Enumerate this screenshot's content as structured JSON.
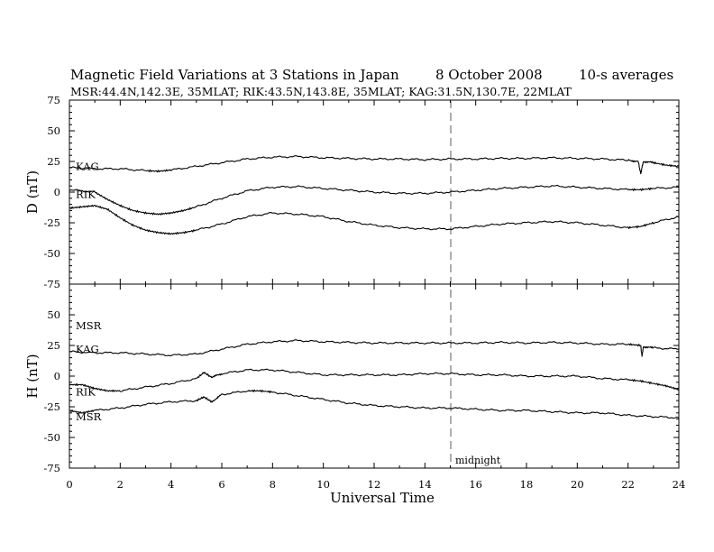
{
  "chart_data": {
    "type": "line",
    "title": "Magnetic Field Variations at 3 Stations in Japan",
    "date": "8   October 2008",
    "averaging": "10-s averages",
    "subtitle": "MSR:44.4N,142.3E, 35MLAT;   RIK:43.5N,143.8E, 35MLAT;   KAG:31.5N,130.7E, 22MLAT",
    "xlabel": "Universal Time",
    "xlim": [
      0,
      24
    ],
    "xticks": [
      "0",
      "2",
      "4",
      "6",
      "8",
      "10",
      "12",
      "14",
      "16",
      "18",
      "20",
      "22",
      "24"
    ],
    "grid": false,
    "annotations": [
      {
        "text": "midnight",
        "x": 15,
        "style": "dashed vertical line"
      }
    ],
    "panels": [
      {
        "ylabel": "D (nT)",
        "ylim": [
          -75,
          75
        ],
        "yticks": [
          "75",
          "50",
          "25",
          "0",
          "-25",
          "-50",
          "-75"
        ],
        "station_labels": [
          {
            "text": "KAG",
            "x": 0.25,
            "y": 21
          },
          {
            "text": "RIK",
            "x": 0.25,
            "y": -2
          }
        ],
        "series": [
          {
            "name": "KAG",
            "x": [
              0,
              1,
              2,
              3,
              3.5,
              4,
              5,
              6,
              7,
              8,
              9,
              10,
              11,
              12,
              13,
              14,
              15,
              16,
              17,
              18,
              19,
              20,
              21,
              22,
              22.4,
              22.5,
              22.6,
              23,
              23.5,
              24
            ],
            "values": [
              20,
              19,
              19,
              17.5,
              17,
              18,
              21,
              24,
              27,
              28.5,
              29,
              28,
              27.5,
              27,
              27,
              26.5,
              27,
              27,
              27.5,
              27.5,
              28,
              27.5,
              27,
              26,
              25,
              15,
              25,
              24,
              22,
              21
            ]
          },
          {
            "name": "RIK",
            "x": [
              0,
              1,
              1.5,
              2,
              2.5,
              3,
              3.5,
              4,
              4.5,
              5,
              6,
              7,
              8,
              9,
              10,
              11,
              12,
              13,
              14,
              15,
              16,
              17,
              18,
              19,
              20,
              21,
              22,
              22.5,
              23,
              24
            ],
            "values": [
              2,
              0,
              -6,
              -11,
              -15,
              -17,
              -18,
              -17,
              -15,
              -12,
              -5,
              1,
              4,
              4.5,
              3,
              1.5,
              0,
              -1,
              -1,
              0,
              1.5,
              3,
              4,
              5,
              4,
              3,
              2,
              2,
              3,
              4
            ]
          },
          {
            "name": "",
            "x": [
              0,
              0.5,
              1,
              1.5,
              2,
              2.5,
              3,
              3.5,
              4,
              4.5,
              5,
              6,
              7,
              8,
              9,
              10,
              11,
              12,
              13,
              14,
              15,
              16,
              17,
              18,
              19,
              20,
              21,
              22,
              22.5,
              23,
              24
            ],
            "values": [
              -13,
              -12,
              -11,
              -14,
              -21,
              -27,
              -31,
              -33,
              -34,
              -33,
              -31,
              -26,
              -20,
              -17,
              -18,
              -20,
              -24,
              -27,
              -29,
              -30,
              -30,
              -28,
              -26,
              -25,
              -24,
              -25,
              -27,
              -29,
              -28,
              -25,
              -20
            ]
          }
        ]
      },
      {
        "ylabel": "H (nT)",
        "ylim": [
          -75,
          75
        ],
        "yticks": [
          "50",
          "25",
          "0",
          "-25",
          "-50",
          "-75"
        ],
        "station_labels": [
          {
            "text": "MSR",
            "x": 0.25,
            "y": 41
          },
          {
            "text": "KAG",
            "x": 0.25,
            "y": 22
          },
          {
            "text": "RIK",
            "x": 0.25,
            "y": -13
          },
          {
            "text": "MSR",
            "x": 0.25,
            "y": -33
          }
        ],
        "series": [
          {
            "name": "KAG",
            "x": [
              0,
              1,
              2,
              3,
              4,
              5,
              6,
              7,
              8,
              9,
              10,
              11,
              12,
              13,
              14,
              15,
              16,
              17,
              18,
              19,
              20,
              21,
              22,
              22.5,
              22.55,
              22.6,
              23,
              24
            ],
            "values": [
              20,
              19,
              19,
              18,
              17,
              18,
              22,
              26,
              28,
              29,
              28,
              27.5,
              27,
              27,
              27,
              27,
              27,
              27.5,
              27,
              27.5,
              27,
              26,
              26,
              25,
              16,
              24,
              23,
              22
            ]
          },
          {
            "name": "RIK",
            "x": [
              0,
              0.5,
              1,
              1.5,
              2,
              3,
              4,
              5,
              5.3,
              5.6,
              6,
              7,
              8,
              9,
              10,
              11,
              12,
              13,
              14,
              15,
              16,
              17,
              18,
              19,
              20,
              21,
              22,
              22.5,
              23,
              23.5,
              24
            ],
            "values": [
              -7,
              -7,
              -10,
              -12,
              -12,
              -9,
              -6,
              -2,
              3,
              -1,
              2,
              5,
              5,
              3,
              1,
              1,
              1,
              1,
              2,
              2,
              1,
              1,
              0,
              0,
              0,
              -2,
              -3,
              -4,
              -6,
              -8,
              -11
            ]
          },
          {
            "name": "MSR",
            "x": [
              0,
              0.5,
              1,
              2,
              3,
              4,
              5,
              5.3,
              5.6,
              6,
              7,
              7.5,
              8,
              9,
              10,
              11,
              12,
              13,
              14,
              15,
              16,
              17,
              18,
              19,
              20,
              21,
              22,
              23,
              24
            ],
            "values": [
              -28,
              -30,
              -28,
              -26,
              -23,
              -21,
              -20,
              -17,
              -21,
              -15,
              -12,
              -12,
              -13,
              -16,
              -19,
              -22,
              -24,
              -25,
              -26,
              -26,
              -27,
              -28,
              -28,
              -29,
              -30,
              -30,
              -32,
              -33,
              -34
            ]
          }
        ]
      }
    ]
  }
}
